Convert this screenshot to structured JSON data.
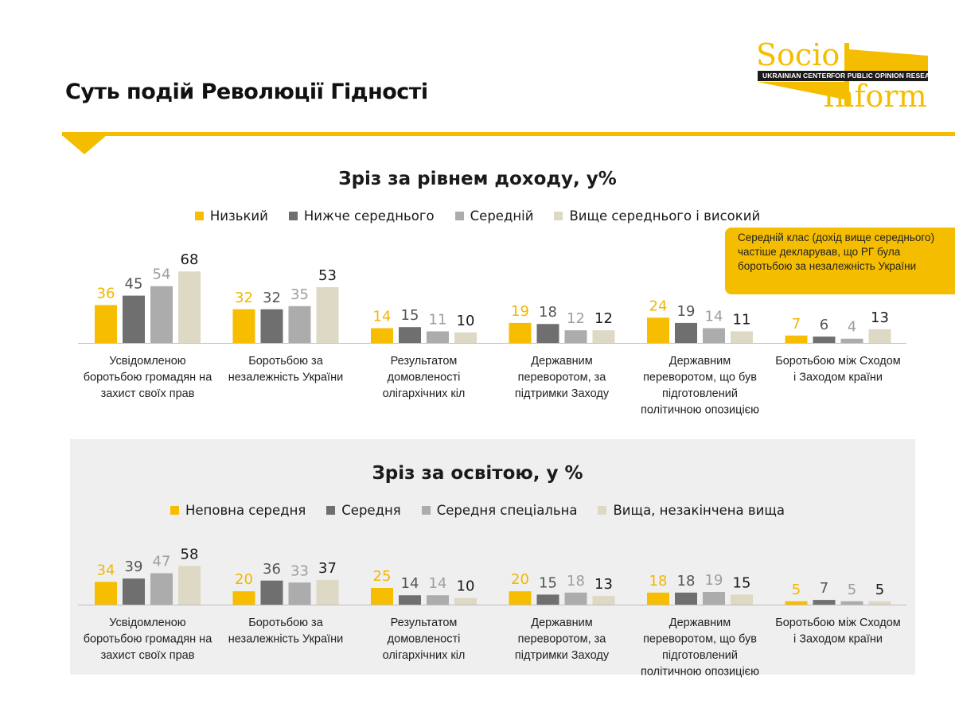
{
  "page_title": "Суть подій Революції Гідності",
  "logo": {
    "word1": "Socio",
    "word2": "Inform",
    "band_left": "UKRAINIAN CENTER",
    "band_right": "FOR PUBLIC OPINION RESEARCH"
  },
  "colors": {
    "accent": "#f5bd00",
    "series": [
      "#f7bd00",
      "#6f6f6f",
      "#acacac",
      "#ddd9c4"
    ],
    "value_labels": [
      "#f2b600",
      "#555555",
      "#9e9e9e",
      "#1a1a1a"
    ]
  },
  "callout_text": "Середній клас (дохід вище середнього) частіше декларував, що РГ була боротьбою за незалежність України",
  "chart_data": [
    {
      "type": "bar",
      "title": "Зріз за рівнем доходу, у%",
      "legend_position": "top",
      "categories": [
        "Усвідомленою боротьбою громадян на захист своїх прав",
        "Боротьбою за незалежність України",
        "Результатом домовленості олігархічних кіл",
        "Державним переворотом, за підтримки Заходу",
        "Державним переворотом, що був підготовлений політичною опозицією",
        "Боротьбою між Сходом і Заходом країни"
      ],
      "category_lines": [
        [
          "Усвідомленою",
          "боротьбою громадян на",
          "захист своїх прав"
        ],
        [
          "Боротьбою за",
          "незалежність України"
        ],
        [
          "Результатом",
          "домовленості",
          "олігархічних кіл"
        ],
        [
          "Державним",
          "переворотом, за",
          "підтримки Заходу"
        ],
        [
          "Державним",
          "переворотом, що був",
          "підготовлений",
          "політичною опозицією"
        ],
        [
          "Боротьбою між Сходом",
          "і Заходом країни"
        ]
      ],
      "series": [
        {
          "name": "Низький",
          "values": [
            36,
            32,
            14,
            19,
            24,
            7
          ]
        },
        {
          "name": "Нижче середнього",
          "values": [
            45,
            32,
            15,
            18,
            19,
            6
          ]
        },
        {
          "name": "Середній",
          "values": [
            54,
            35,
            11,
            12,
            14,
            4
          ]
        },
        {
          "name": "Вище середнього і високий",
          "values": [
            68,
            53,
            10,
            12,
            11,
            13
          ]
        }
      ],
      "ylim": [
        0,
        100
      ]
    },
    {
      "type": "bar",
      "title": "Зріз за освітою, у %",
      "legend_position": "top",
      "categories": [
        "Усвідомленою боротьбою громадян на захист своїх прав",
        "Боротьбою за незалежність України",
        "Результатом домовленості олігархічних кіл",
        "Державним переворотом, за підтримки Заходу",
        "Державним переворотом, що був підготовлений політичною опозицією",
        "Боротьбою між Сходом і Заходом країни"
      ],
      "category_lines": [
        [
          "Усвідомленою",
          "боротьбою громадян на",
          "захист своїх прав"
        ],
        [
          "Боротьбою за",
          "незалежність України"
        ],
        [
          "Результатом",
          "домовленості",
          "олігархічних кіл"
        ],
        [
          "Державним",
          "переворотом, за",
          "підтримки Заходу"
        ],
        [
          "Державним",
          "переворотом, що був",
          "підготовлений",
          "політичною опозицією"
        ],
        [
          "Боротьбою між Сходом",
          "і Заходом країни"
        ]
      ],
      "series": [
        {
          "name": "Неповна середня",
          "values": [
            34,
            20,
            25,
            20,
            18,
            5
          ]
        },
        {
          "name": "Середня",
          "values": [
            39,
            36,
            14,
            15,
            18,
            7
          ]
        },
        {
          "name": "Середня спеціальна",
          "values": [
            47,
            33,
            14,
            18,
            19,
            5
          ]
        },
        {
          "name": "Вища, незакінчена вища",
          "values": [
            58,
            37,
            10,
            13,
            15,
            5
          ]
        }
      ],
      "ylim": [
        0,
        100
      ]
    }
  ]
}
